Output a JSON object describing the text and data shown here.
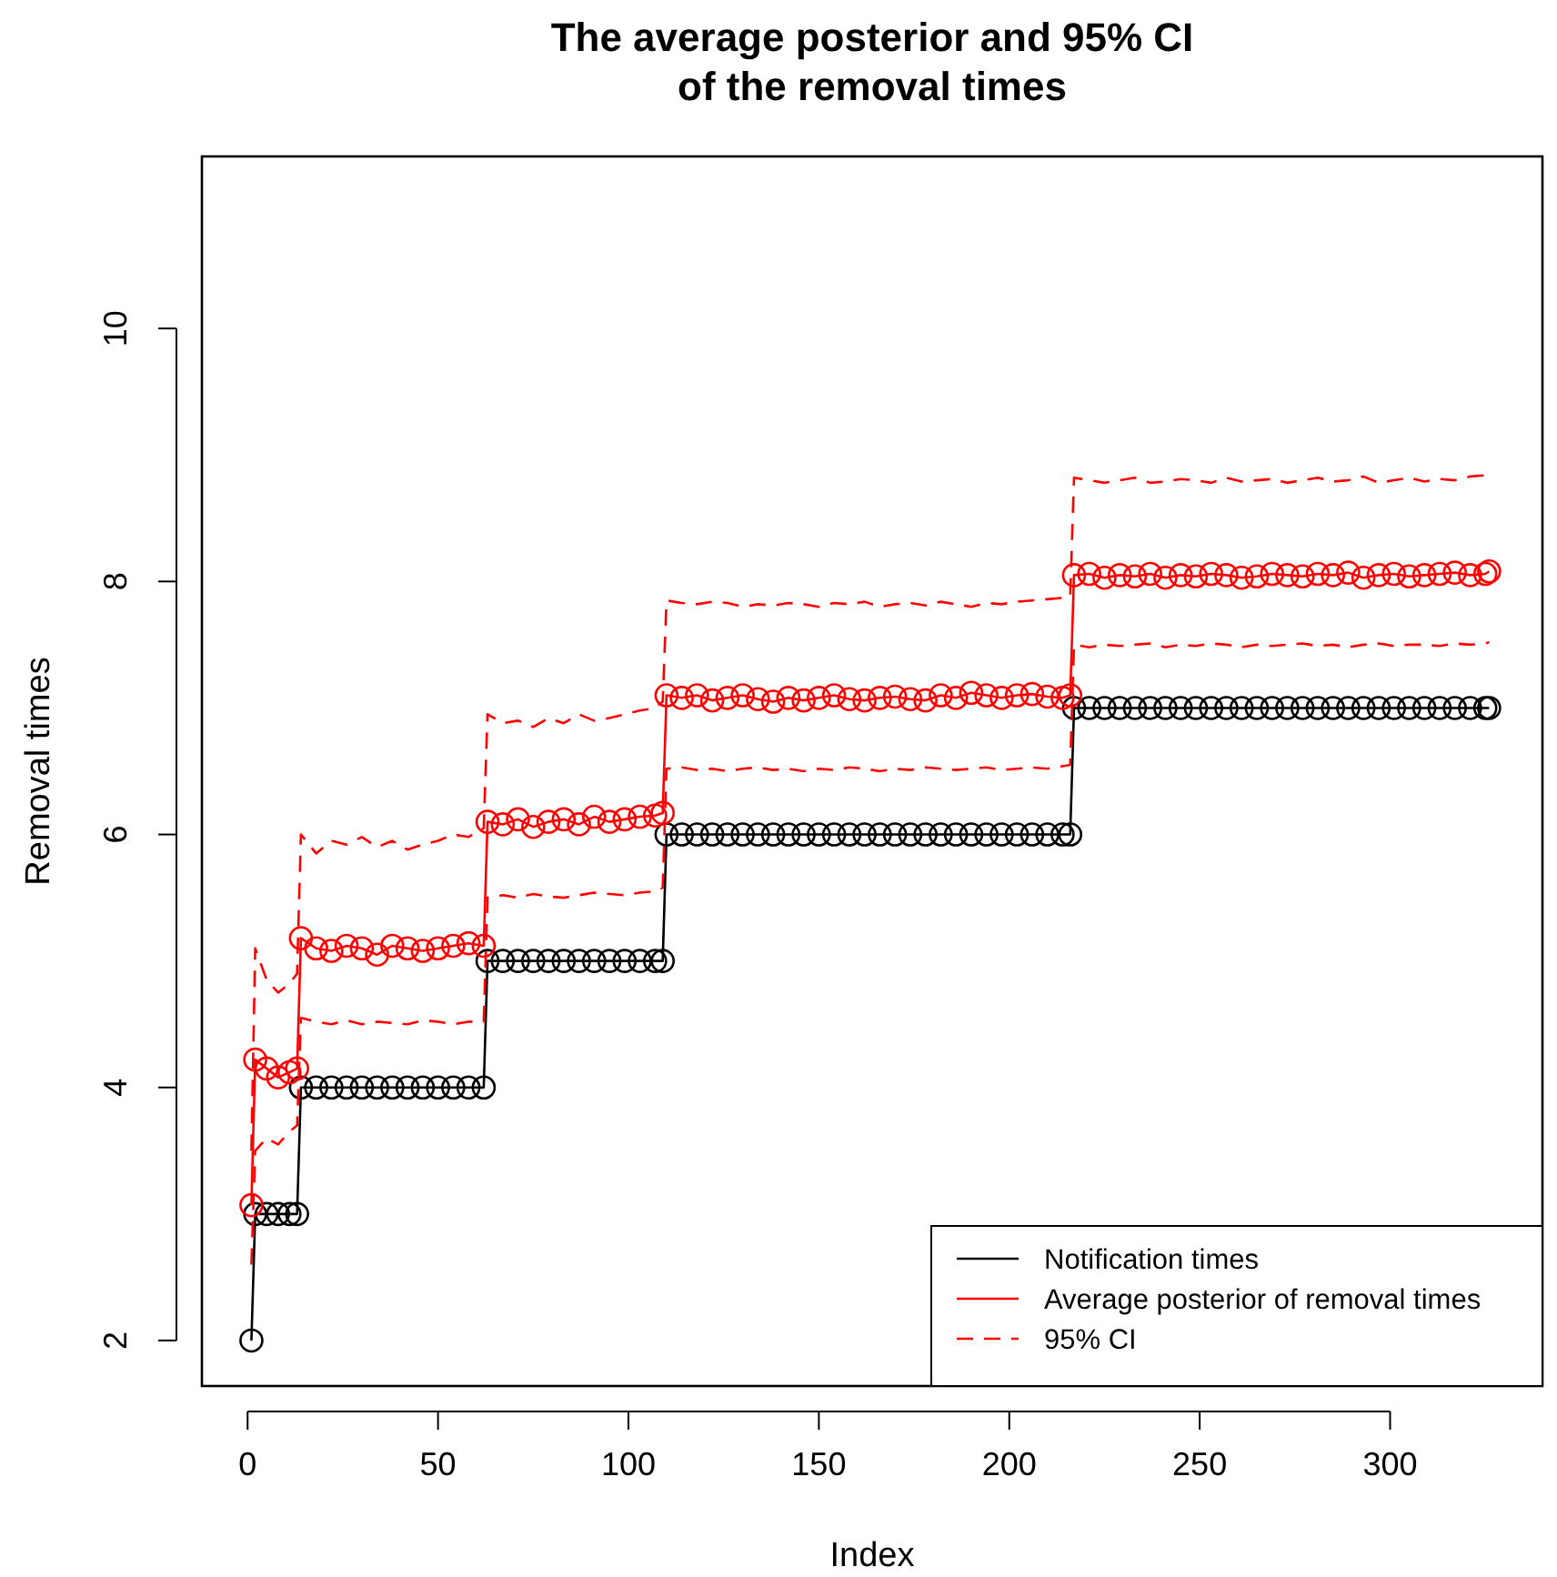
{
  "chart_data": {
    "type": "line",
    "title": "The average posterior and 95% CI\nof the removal times",
    "xlabel": "Index",
    "ylabel": "Removal times",
    "x": [
      1,
      2,
      5,
      8,
      11,
      13,
      14,
      18,
      22,
      26,
      30,
      34,
      38,
      42,
      46,
      50,
      54,
      58,
      62,
      63,
      67,
      71,
      75,
      79,
      83,
      87,
      91,
      95,
      99,
      103,
      107,
      109,
      110,
      114,
      118,
      122,
      126,
      130,
      134,
      138,
      142,
      146,
      150,
      154,
      158,
      162,
      166,
      170,
      174,
      178,
      182,
      186,
      190,
      194,
      198,
      202,
      206,
      210,
      214,
      216,
      217,
      221,
      225,
      229,
      233,
      237,
      241,
      245,
      249,
      253,
      257,
      261,
      265,
      269,
      273,
      277,
      281,
      285,
      289,
      293,
      297,
      301,
      305,
      309,
      313,
      317,
      321,
      325,
      326
    ],
    "xlim": [
      -12,
      340
    ],
    "xticks": [
      0,
      50,
      100,
      150,
      200,
      250,
      300
    ],
    "ylim": [
      1.64,
      11.36
    ],
    "yticks": [
      2,
      4,
      6,
      8,
      10
    ],
    "grid": false,
    "legend": "bottom right",
    "series": [
      {
        "name": "Notification times",
        "color": "#000000",
        "marker": "circle",
        "line_style": "solid",
        "values": [
          2,
          3,
          3,
          3,
          3,
          3,
          4,
          4,
          4,
          4,
          4,
          4,
          4,
          4,
          4,
          4,
          4,
          4,
          4,
          5,
          5,
          5,
          5,
          5,
          5,
          5,
          5,
          5,
          5,
          5,
          5,
          5,
          6,
          6,
          6,
          6,
          6,
          6,
          6,
          6,
          6,
          6,
          6,
          6,
          6,
          6,
          6,
          6,
          6,
          6,
          6,
          6,
          6,
          6,
          6,
          6,
          6,
          6,
          6,
          6,
          7,
          7,
          7,
          7,
          7,
          7,
          7,
          7,
          7,
          7,
          7,
          7,
          7,
          7,
          7,
          7,
          7,
          7,
          7,
          7,
          7,
          7,
          7,
          7,
          7,
          7,
          7,
          7,
          7
        ]
      },
      {
        "name": "Average posterior of removal times",
        "color": "#ff0000",
        "marker": "circle",
        "line_style": "solid",
        "values": [
          3.07,
          4.22,
          4.15,
          4.08,
          4.12,
          4.15,
          5.18,
          5.1,
          5.08,
          5.12,
          5.1,
          5.05,
          5.12,
          5.1,
          5.08,
          5.1,
          5.12,
          5.14,
          5.12,
          6.1,
          6.08,
          6.12,
          6.06,
          6.1,
          6.12,
          6.08,
          6.14,
          6.1,
          6.12,
          6.14,
          6.15,
          6.17,
          7.1,
          7.08,
          7.1,
          7.06,
          7.08,
          7.1,
          7.07,
          7.05,
          7.08,
          7.06,
          7.08,
          7.1,
          7.07,
          7.06,
          7.08,
          7.09,
          7.07,
          7.06,
          7.1,
          7.08,
          7.12,
          7.1,
          7.08,
          7.1,
          7.11,
          7.09,
          7.08,
          7.1,
          8.05,
          8.06,
          8.03,
          8.05,
          8.04,
          8.06,
          8.03,
          8.05,
          8.04,
          8.06,
          8.05,
          8.03,
          8.04,
          8.06,
          8.05,
          8.04,
          8.06,
          8.05,
          8.07,
          8.03,
          8.05,
          8.06,
          8.04,
          8.05,
          8.06,
          8.07,
          8.05,
          8.06,
          8.08
        ]
      },
      {
        "name": "95% CI",
        "color": "#ff0000",
        "marker": "none",
        "line_style": "dashed",
        "values": [
          3.5,
          5.1,
          4.85,
          4.75,
          4.82,
          4.9,
          6.0,
          5.85,
          5.95,
          5.92,
          5.98,
          5.9,
          5.95,
          5.88,
          5.92,
          5.95,
          6.0,
          5.98,
          6.05,
          6.95,
          6.88,
          6.9,
          6.85,
          6.92,
          6.88,
          6.95,
          6.9,
          6.92,
          6.95,
          6.98,
          7.0,
          7.05,
          7.85,
          7.83,
          7.82,
          7.84,
          7.83,
          7.8,
          7.82,
          7.81,
          7.83,
          7.82,
          7.8,
          7.83,
          7.82,
          7.84,
          7.8,
          7.82,
          7.83,
          7.81,
          7.84,
          7.82,
          7.8,
          7.83,
          7.82,
          7.84,
          7.85,
          7.86,
          7.87,
          7.88,
          8.82,
          8.8,
          8.78,
          8.8,
          8.82,
          8.78,
          8.79,
          8.81,
          8.8,
          8.78,
          8.82,
          8.79,
          8.8,
          8.81,
          8.78,
          8.8,
          8.82,
          8.79,
          8.8,
          8.83,
          8.78,
          8.8,
          8.82,
          8.79,
          8.81,
          8.8,
          8.83,
          8.84,
          8.85
        ]
      },
      {
        "color": "#ff0000",
        "marker": "none",
        "line_style": "dashed",
        "values": [
          2.6,
          3.5,
          3.6,
          3.55,
          3.65,
          3.7,
          4.55,
          4.52,
          4.5,
          4.53,
          4.5,
          4.52,
          4.51,
          4.5,
          4.53,
          4.52,
          4.5,
          4.52,
          4.52,
          5.5,
          5.52,
          5.5,
          5.53,
          5.51,
          5.5,
          5.52,
          5.54,
          5.53,
          5.52,
          5.54,
          5.55,
          5.58,
          6.52,
          6.53,
          6.51,
          6.52,
          6.5,
          6.52,
          6.53,
          6.51,
          6.52,
          6.5,
          6.52,
          6.51,
          6.53,
          6.52,
          6.5,
          6.52,
          6.51,
          6.53,
          6.52,
          6.51,
          6.52,
          6.53,
          6.51,
          6.52,
          6.53,
          6.52,
          6.54,
          6.55,
          7.5,
          7.48,
          7.5,
          7.49,
          7.5,
          7.51,
          7.48,
          7.5,
          7.49,
          7.51,
          7.5,
          7.48,
          7.5,
          7.49,
          7.5,
          7.51,
          7.49,
          7.5,
          7.48,
          7.5,
          7.51,
          7.49,
          7.5,
          7.5,
          7.49,
          7.51,
          7.5,
          7.51,
          7.52
        ]
      }
    ]
  }
}
